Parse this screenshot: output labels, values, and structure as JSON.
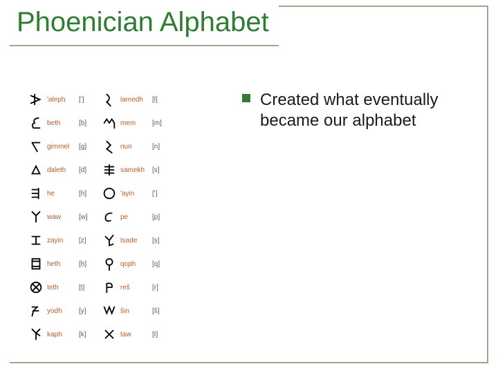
{
  "slide": {
    "title": "Phoenician Alphabet",
    "title_color": "#2e7d32",
    "border_color": "#9aa88e",
    "title_underline_color": "#9aa88e"
  },
  "bullet": {
    "marker_color": "#2e7d32",
    "text": "Created what eventually became our alphabet",
    "text_color": "#1a1a1a"
  },
  "alphabet": {
    "name_color": "#b85c2c",
    "sound_color": "#5a5a5a",
    "glyph_stroke": "#000000",
    "left": [
      {
        "name": "'aleph",
        "snd": "[']"
      },
      {
        "name": "beth",
        "snd": "[b]"
      },
      {
        "name": "gimmel",
        "snd": "[g]"
      },
      {
        "name": "daleth",
        "snd": "[d]"
      },
      {
        "name": "he",
        "snd": "[h]"
      },
      {
        "name": "waw",
        "snd": "[w]"
      },
      {
        "name": "zayin",
        "snd": "[z]"
      },
      {
        "name": "heth",
        "snd": "[ḥ]"
      },
      {
        "name": "teth",
        "snd": "[ṭ]"
      },
      {
        "name": "yodh",
        "snd": "[y]"
      },
      {
        "name": "kaph",
        "snd": "[k]"
      }
    ],
    "right": [
      {
        "name": "lamedh",
        "snd": "[l]"
      },
      {
        "name": "mem",
        "snd": "[m]"
      },
      {
        "name": "nun",
        "snd": "[n]"
      },
      {
        "name": "samekh",
        "snd": "[s]"
      },
      {
        "name": "'ayin",
        "snd": "[']"
      },
      {
        "name": "pe",
        "snd": "[p]"
      },
      {
        "name": "tsade",
        "snd": "[ṣ]"
      },
      {
        "name": "qoph",
        "snd": "[q]"
      },
      {
        "name": "reš",
        "snd": "[r]"
      },
      {
        "name": "šin",
        "snd": "[š]"
      },
      {
        "name": "taw",
        "snd": "[t]"
      }
    ]
  }
}
